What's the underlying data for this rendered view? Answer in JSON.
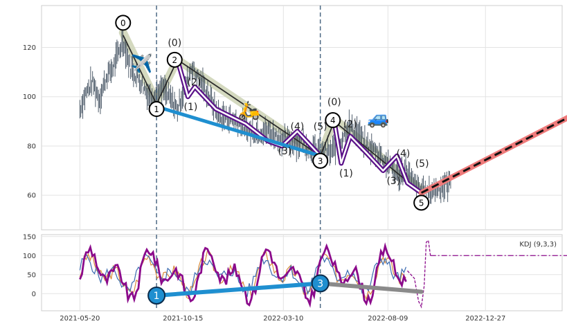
{
  "chart_data": [
    {
      "type": "line",
      "panel": "price",
      "ylim": [
        46,
        137
      ],
      "yticks": [
        60,
        80,
        100,
        120
      ],
      "grid": true,
      "price_path": [
        [
          0,
          95
        ],
        [
          8,
          101
        ],
        [
          18,
          106
        ],
        [
          28,
          99
        ],
        [
          38,
          108
        ],
        [
          48,
          112
        ],
        [
          62,
          123
        ],
        [
          72,
          112
        ],
        [
          85,
          107
        ],
        [
          100,
          100
        ],
        [
          120,
          103
        ],
        [
          140,
          95
        ],
        [
          160,
          112
        ],
        [
          180,
          103
        ],
        [
          200,
          92
        ],
        [
          220,
          91
        ],
        [
          245,
          86
        ],
        [
          270,
          86
        ],
        [
          295,
          82
        ],
        [
          320,
          81
        ],
        [
          343,
          78
        ],
        [
          358,
          77
        ],
        [
          370,
          80
        ],
        [
          385,
          88
        ],
        [
          398,
          86
        ],
        [
          410,
          80
        ],
        [
          425,
          78
        ],
        [
          445,
          72
        ],
        [
          458,
          68
        ],
        [
          468,
          72
        ],
        [
          475,
          66
        ],
        [
          488,
          62
        ],
        [
          500,
          61
        ],
        [
          515,
          63
        ],
        [
          532,
          65
        ]
      ],
      "zigzag_fill": [
        [
          62,
          126
        ],
        [
          110,
          98
        ],
        [
          140,
          115
        ],
        [
          345,
          76
        ],
        [
          365,
          91
        ],
        [
          490,
          62
        ]
      ],
      "wave_paths": [
        {
          "name": "grey",
          "color": "#2c2c2c",
          "points": [
            [
              62,
              125
            ],
            [
              110,
              97
            ],
            [
              140,
              115
            ],
            [
              345,
              76
            ],
            [
              365,
              90
            ],
            [
              490,
              61
            ]
          ]
        },
        {
          "name": "purple-1",
          "color": "#5b1289",
          "points": [
            [
              140,
              115
            ],
            [
              155,
              100
            ],
            [
              165,
              104
            ],
            [
              195,
              95
            ],
            [
              238,
              89
            ],
            [
              270,
              82
            ],
            [
              290,
              80
            ],
            [
              312,
              86
            ],
            [
              345,
              76
            ]
          ]
        },
        {
          "name": "purple-2",
          "color": "#5b1289",
          "points": [
            [
              365,
              90
            ],
            [
              375,
              73
            ],
            [
              388,
              84
            ],
            [
              412,
              77
            ],
            [
              435,
              70
            ],
            [
              455,
              76
            ],
            [
              470,
              65
            ],
            [
              490,
              61
            ]
          ]
        },
        {
          "name": "blue-trend",
          "color": "#1f8fd0",
          "points": [
            [
              110,
              96
            ],
            [
              345,
              76
            ]
          ]
        },
        {
          "name": "forecast",
          "color": "#ef7b7b",
          "points": [
            [
              490,
              61
            ],
            [
              745,
              98
            ]
          ]
        }
      ],
      "markers": [
        {
          "label": "0",
          "x": 62,
          "y": 130,
          "circled": true
        },
        {
          "label": "1",
          "x": 110,
          "y": 95,
          "circled": true
        },
        {
          "label": "2",
          "x": 136,
          "y": 115,
          "circled": true
        },
        {
          "label": "3",
          "x": 345,
          "y": 74,
          "circled": true
        },
        {
          "label": "4",
          "x": 363,
          "y": 90.5,
          "circled": true
        },
        {
          "label": "5",
          "x": 490,
          "y": 57,
          "circled": true
        },
        {
          "label": "(0)",
          "x": 136,
          "y": 122,
          "circled": false
        },
        {
          "label": "(2)",
          "x": 164,
          "y": 106,
          "circled": false
        },
        {
          "label": "(1)",
          "x": 159,
          "y": 96,
          "circled": false
        },
        {
          "label": "(4)",
          "x": 312,
          "y": 88,
          "circled": false
        },
        {
          "label": "(3)",
          "x": 294,
          "y": 78,
          "circled": false
        },
        {
          "label": "(5)",
          "x": 345,
          "y": 88,
          "circled": false
        },
        {
          "label": "(0)",
          "x": 365,
          "y": 98,
          "circled": false
        },
        {
          "label": "(2)",
          "x": 388,
          "y": 89,
          "circled": false
        },
        {
          "label": "(1)",
          "x": 382,
          "y": 69,
          "circled": false
        },
        {
          "label": "(4)",
          "x": 464,
          "y": 77,
          "circled": false
        },
        {
          "label": "(3)",
          "x": 450,
          "y": 66,
          "circled": false
        },
        {
          "label": "(5)",
          "x": 491,
          "y": 73,
          "circled": false
        }
      ],
      "emojis": [
        {
          "glyph": "✈️",
          "x": 89,
          "y": 111
        },
        {
          "glyph": "🛵",
          "x": 243,
          "y": 92
        },
        {
          "glyph": "🚙",
          "x": 428,
          "y": 89
        }
      ]
    },
    {
      "type": "line",
      "panel": "kdj",
      "legend": "KDJ (9,3,3)",
      "ylim": [
        -45,
        155
      ],
      "yticks": [
        0,
        50,
        100,
        150
      ],
      "grid": true,
      "trend_paths": [
        {
          "name": "blue-trend",
          "color": "#1f8fd0",
          "points": [
            [
              110,
              -5
            ],
            [
              345,
              27
            ]
          ]
        },
        {
          "name": "grey-trend",
          "color": "#8a8a8a",
          "points": [
            [
              345,
              27
            ],
            [
              490,
              5
            ]
          ]
        }
      ],
      "circle_markers": [
        {
          "label": "1",
          "x": 110,
          "y": -5
        },
        {
          "label": "3",
          "x": 345,
          "y": 27
        }
      ]
    }
  ],
  "x_axis": {
    "ticks": [
      {
        "label": "2021-05-20",
        "x": 0
      },
      {
        "label": "2021-10-15",
        "x": 148
      },
      {
        "label": "2022-03-10",
        "x": 292
      },
      {
        "label": "2022-08-09",
        "x": 442
      },
      {
        "label": "2022-12-27",
        "x": 582
      }
    ],
    "xlim": [
      -55,
      692
    ],
    "vlines": [
      110,
      345
    ]
  }
}
